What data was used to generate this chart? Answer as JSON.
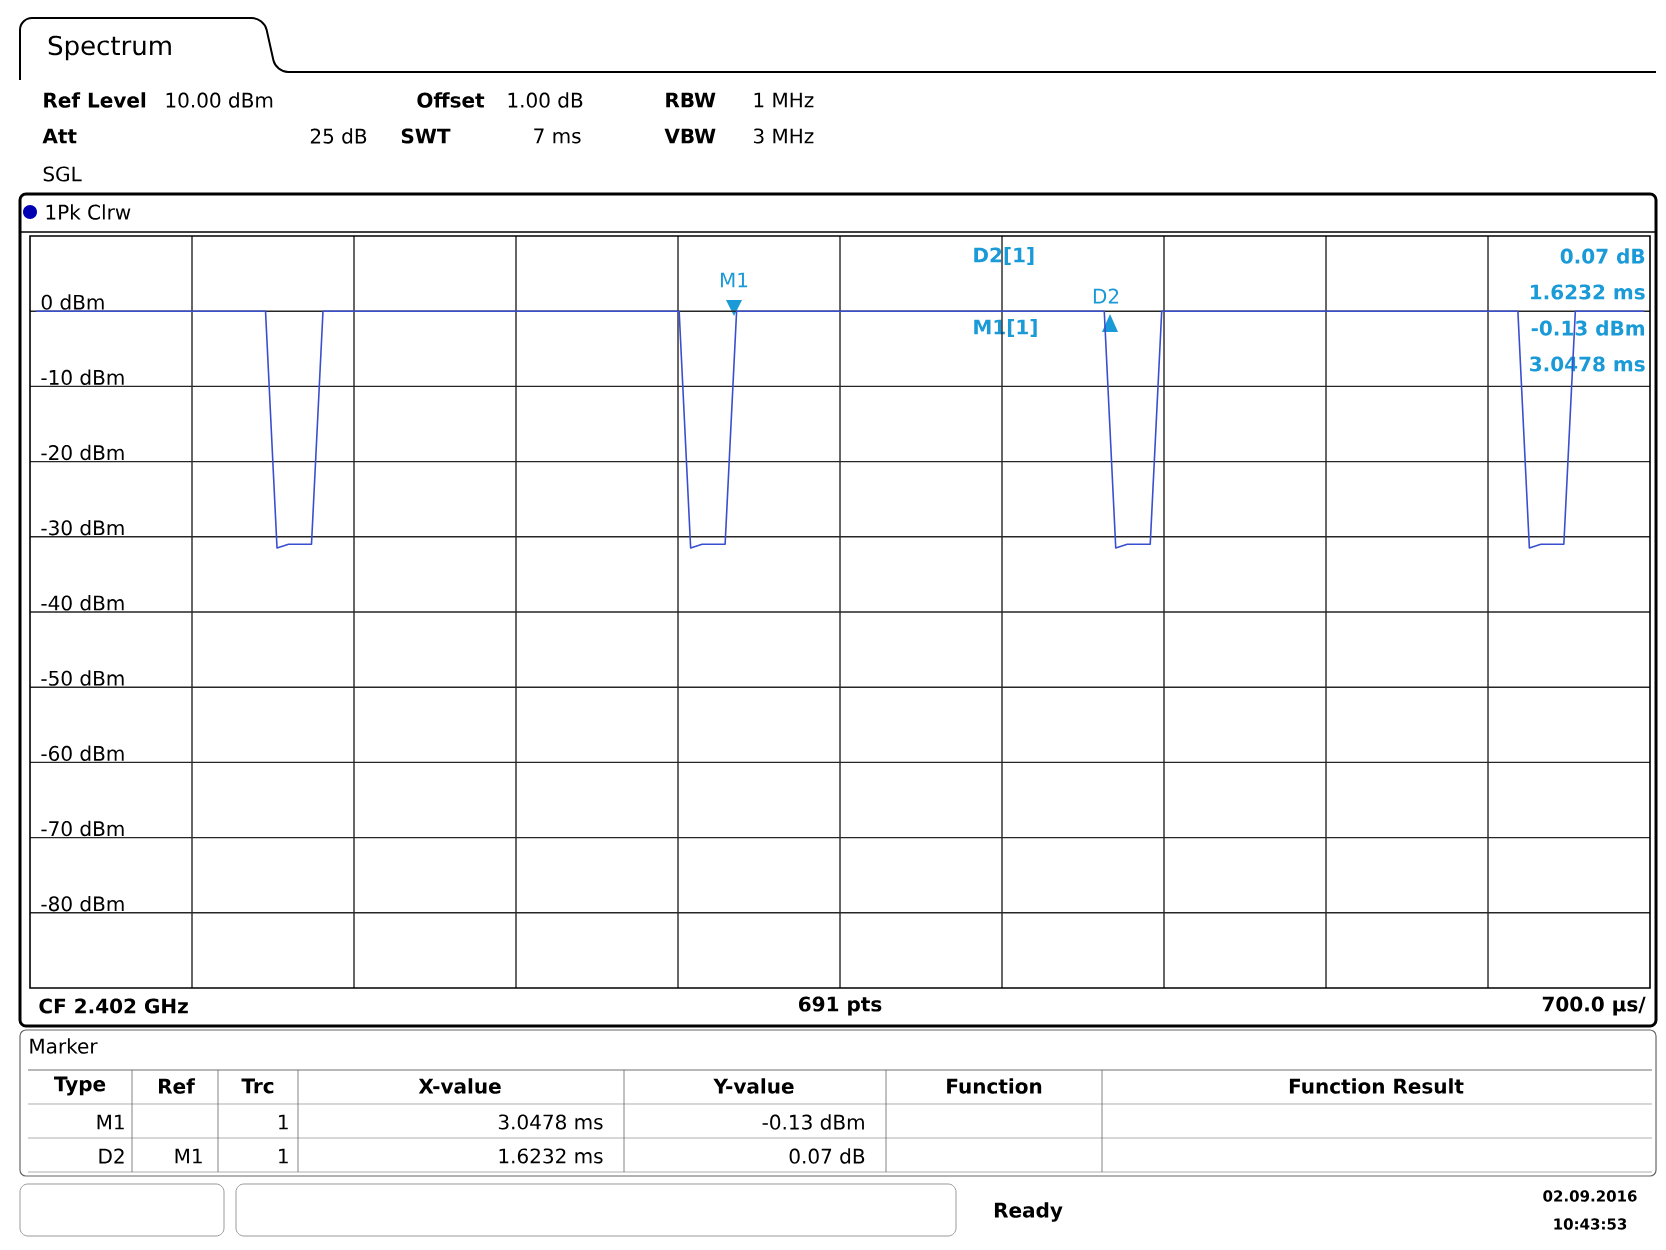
{
  "chart_data": {
    "type": "line",
    "title": "Spectrum",
    "categories": [
      null,
      null,
      null,
      null,
      null,
      null,
      null,
      null,
      null,
      null,
      null,
      null,
      null,
      null,
      null,
      null,
      null,
      null,
      null,
      null,
      null,
      null,
      null,
      null,
      null,
      null,
      null,
      null,
      null,
      null,
      null,
      null,
      null,
      null,
      null,
      null,
      null,
      null,
      null,
      null,
      null,
      null,
      null,
      null,
      null,
      null,
      null,
      null,
      null,
      null,
      null,
      null,
      null,
      null,
      null,
      null,
      null,
      null,
      null,
      null,
      null,
      null,
      null,
      null,
      null,
      null,
      null,
      null,
      null,
      null,
      null,
      null,
      null,
      null,
      null,
      null,
      null,
      null,
      null,
      null,
      null,
      null,
      null,
      null,
      null,
      null,
      null,
      null,
      null,
      null,
      null,
      null,
      null,
      null,
      null,
      null,
      null,
      null,
      null,
      null,
      null,
      null,
      null,
      null,
      null,
      null,
      null,
      null,
      null,
      null,
      null,
      null,
      null,
      null,
      null,
      null,
      null,
      null,
      null,
      null,
      null,
      null,
      null,
      null,
      null,
      null,
      null,
      null,
      null,
      null,
      null,
      null,
      null,
      null,
      null,
      null,
      null,
      null,
      null,
      null,
      null
    ],
    "ylim": [
      -90,
      10
    ],
    "yticks": [
      {
        "value": 0,
        "label": "0 dBm"
      },
      {
        "value": -10,
        "label": "-10 dBm"
      },
      {
        "value": -20,
        "label": "-20 dBm"
      },
      {
        "value": -30,
        "label": "-30 dBm"
      },
      {
        "value": -40,
        "label": "-40 dBm"
      },
      {
        "value": -50,
        "label": "-50 dBm"
      },
      {
        "value": -60,
        "label": "-60 dBm"
      },
      {
        "value": -70,
        "label": "-70 dBm"
      },
      {
        "value": -80,
        "label": "-80 dBm"
      }
    ],
    "tick_labels": "y",
    "grid": true,
    "marker": "none",
    "line_style": "solid",
    "series": [
      {
        "color": "#3a4fd0",
        "values": [
          0,
          0,
          0,
          0,
          0,
          0,
          0,
          0,
          0,
          0,
          0,
          0,
          0,
          0,
          0,
          0,
          0,
          0,
          0,
          0,
          0,
          -31.5,
          -31,
          -31,
          -31,
          0,
          0,
          0,
          0,
          0,
          0,
          0,
          0,
          0,
          0,
          0,
          0,
          0,
          0,
          0,
          0,
          0,
          0,
          0,
          0,
          0,
          0,
          0,
          0,
          0,
          0,
          0,
          0,
          0,
          0,
          0,
          0,
          -31.5,
          -31,
          -31,
          -31,
          0,
          0,
          0,
          0,
          0,
          0,
          0,
          0,
          0,
          0,
          0,
          0,
          0,
          0,
          0,
          0,
          0,
          0,
          0,
          0,
          0,
          0,
          0,
          0,
          0,
          0,
          0,
          0,
          0,
          0,
          0,
          0,
          0,
          -31.5,
          -31,
          -31,
          -31,
          0,
          0,
          0,
          0,
          0,
          0,
          0,
          0,
          0,
          0,
          0,
          0,
          0,
          0,
          0,
          0,
          0,
          0,
          0,
          0,
          0,
          0,
          0,
          0,
          0,
          0,
          0,
          0,
          0,
          0,
          0,
          0,
          -31.5,
          -31,
          -31,
          -31,
          0,
          0,
          0,
          0,
          0,
          0,
          0
        ]
      }
    ],
    "annotations": [
      "Ref Level",
      "10.00 dBm",
      "Offset",
      "1.00 dB",
      "RBW",
      "1 MHz",
      "Att",
      "25 dB",
      "SWT",
      "7 ms",
      "VBW",
      "3 MHz",
      "SGL",
      "1Pk Clrw",
      "D2[1]",
      "M1[1]",
      "0.07 dB",
      "1.6232 ms",
      "-0.13 dBm",
      "3.0478 ms",
      "CF 2.402 GHz",
      "691 pts",
      "700.0 µs/",
      "Marker",
      "Type",
      "Ref",
      "Trc",
      "X-value",
      "Y-value",
      "Function",
      "Function Result",
      "M1",
      "1",
      "3.0478 ms",
      "-0.13 dBm",
      "D2",
      "M1",
      "1",
      "1.6232 ms",
      "0.07 dB",
      "Ready",
      "02.09.2016",
      "10:43:53",
      "M1",
      "D2"
    ]
  }
}
